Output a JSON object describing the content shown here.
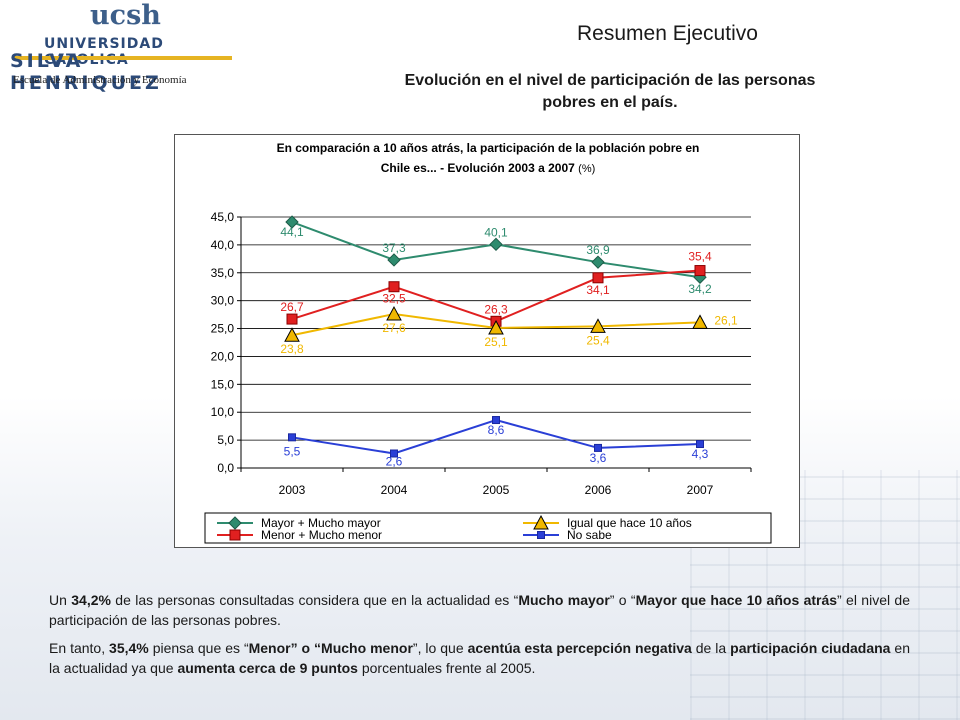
{
  "header": {
    "logo_acronym": "ucsh",
    "logo_university": "UNIVERSIDAD CATOLICA",
    "logo_name": "SILVA HENRIQUEZ",
    "school": "Escuela de Administración y Economía",
    "page_title": "Resumen Ejecutivo",
    "subtitle_line1": "Evolución en el nivel de participación de las personas",
    "subtitle_line2": "pobres en el país."
  },
  "chart_data": {
    "type": "line",
    "title_line1": "En comparación a 10 años atrás, la participación de la población pobre en",
    "title_line2": "Chile es... - Evolución 2003 a 2007",
    "title_unit": "(%)",
    "categories": [
      "2003",
      "2004",
      "2005",
      "2006",
      "2007"
    ],
    "ylim": [
      0,
      45
    ],
    "yticks": [
      "45,0",
      "40,0",
      "35,0",
      "30,0",
      "25,0",
      "20,0",
      "15,0",
      "10,0",
      "5,0",
      "0,0"
    ],
    "grid": true,
    "legend_position": "bottom",
    "series": [
      {
        "name": "Mayor + Mucho mayor",
        "color": "#2e8b6e",
        "marker": "diamond",
        "values": [
          44.1,
          37.3,
          40.1,
          36.9,
          34.2
        ],
        "labels": [
          "44,1",
          "37,3",
          "40,1",
          "36,9",
          "34,2"
        ]
      },
      {
        "name": "Menor + Mucho menor",
        "color": "#e02020",
        "marker": "square",
        "values": [
          26.7,
          32.5,
          26.3,
          34.1,
          35.4
        ],
        "labels": [
          "26,7",
          "32,5",
          "26,3",
          "34,1",
          "35,4"
        ]
      },
      {
        "name": "Igual que hace 10 años",
        "color": "#f0b800",
        "marker": "triangle",
        "values": [
          23.8,
          27.6,
          25.1,
          25.4,
          26.1
        ],
        "labels": [
          "23,8",
          "27,6",
          "25,1",
          "25,4",
          "26,1"
        ]
      },
      {
        "name": "No sabe",
        "color": "#2a3fd6",
        "marker": "smallsquare",
        "values": [
          5.5,
          2.6,
          8.6,
          3.6,
          4.3
        ],
        "labels": [
          "5,5",
          "2,6",
          "8,6",
          "3,6",
          "4,3"
        ]
      }
    ]
  },
  "body_text": {
    "p1": [
      {
        "t": "Un ",
        "b": false
      },
      {
        "t": "34,2%",
        "b": true
      },
      {
        "t": " de las personas consultadas considera que en la actualidad es “",
        "b": false
      },
      {
        "t": "Mucho mayor",
        "b": true
      },
      {
        "t": "” o “",
        "b": false
      },
      {
        "t": "Mayor que hace 10 años atrás",
        "b": true
      },
      {
        "t": "” el nivel de participación de las personas pobres.",
        "b": false
      }
    ],
    "p2": [
      {
        "t": "En tanto, ",
        "b": false
      },
      {
        "t": "35,4%",
        "b": true
      },
      {
        "t": " piensa que es “",
        "b": false
      },
      {
        "t": "Menor” o “Mucho menor",
        "b": true
      },
      {
        "t": "”, lo que ",
        "b": false
      },
      {
        "t": "acentúa esta percepción negativa",
        "b": true
      },
      {
        "t": " de la ",
        "b": false
      },
      {
        "t": "participación ciudadana",
        "b": true
      },
      {
        "t": " en la actualidad ya que ",
        "b": false
      },
      {
        "t": "aumenta cerca de 9 puntos",
        "b": true
      },
      {
        "t": " porcentuales frente al 2005.",
        "b": false
      }
    ]
  }
}
